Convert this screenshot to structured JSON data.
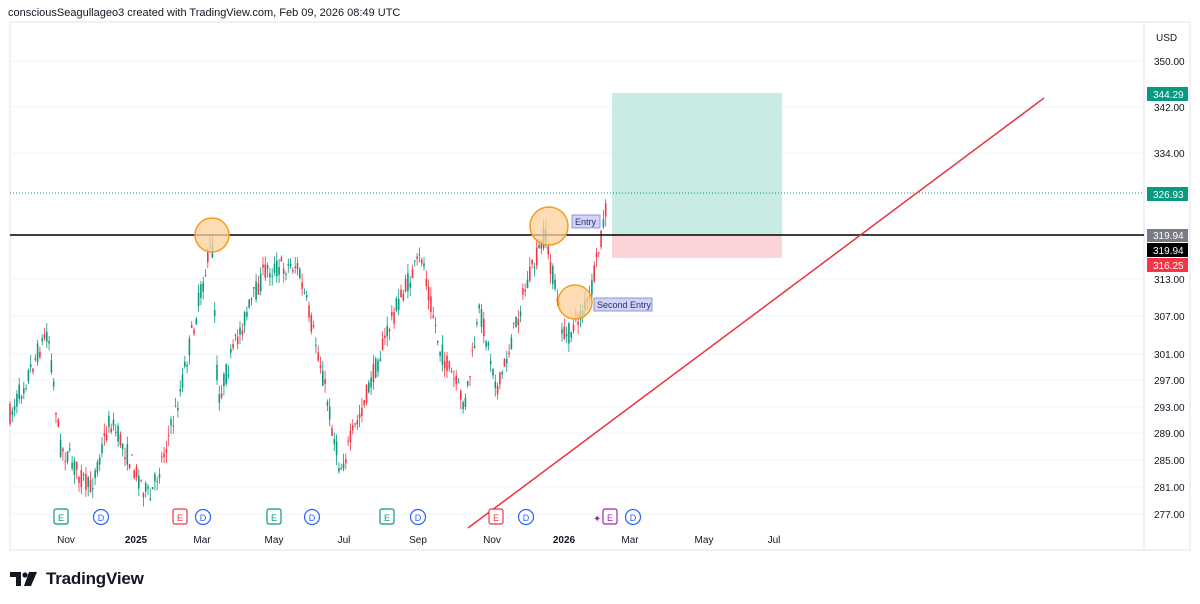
{
  "header": {
    "attribution": "consciousSeagullageo3 created with TradingView.com, Feb 09, 2026 08:49 UTC"
  },
  "price_axis": {
    "currency": "USD",
    "ticks": [
      "350.00",
      "342.00",
      "334.00",
      "313.00",
      "307.00",
      "301.00",
      "297.00",
      "293.00",
      "289.00",
      "285.00",
      "281.00",
      "277.00"
    ]
  },
  "time_axis": {
    "labels": [
      {
        "text": "Nov",
        "bold": false
      },
      {
        "text": "2025",
        "bold": true
      },
      {
        "text": "Mar",
        "bold": false
      },
      {
        "text": "May",
        "bold": false
      },
      {
        "text": "Jul",
        "bold": false
      },
      {
        "text": "Sep",
        "bold": false
      },
      {
        "text": "Nov",
        "bold": false
      },
      {
        "text": "2026",
        "bold": true
      },
      {
        "text": "Mar",
        "bold": false
      },
      {
        "text": "May",
        "bold": false
      },
      {
        "text": "Jul",
        "bold": false
      }
    ]
  },
  "price_badges": {
    "target": {
      "text": "344.29",
      "color": "#089981"
    },
    "last": {
      "text": "326.93",
      "color": "#089981"
    },
    "line_grey": {
      "text": "319.94",
      "color": "#787b86"
    },
    "line_black": {
      "text": "319.94",
      "color": "#000000"
    },
    "stop": {
      "text": "316.25",
      "color": "#f23645"
    }
  },
  "annotations": {
    "entry_label": "Entry",
    "second_entry_label": "Second Entry"
  },
  "events": [
    {
      "type": "E",
      "color": "#089981"
    },
    {
      "type": "D",
      "color": "#2962ff"
    },
    {
      "type": "E",
      "color": "#f23645"
    },
    {
      "type": "D",
      "color": "#2962ff"
    },
    {
      "type": "E",
      "color": "#089981"
    },
    {
      "type": "D",
      "color": "#2962ff"
    },
    {
      "type": "E",
      "color": "#089981"
    },
    {
      "type": "D",
      "color": "#2962ff"
    },
    {
      "type": "E",
      "color": "#f23645"
    },
    {
      "type": "D",
      "color": "#2962ff"
    },
    {
      "type": "E",
      "color": "#9c27b0"
    },
    {
      "type": "D",
      "color": "#2962ff"
    }
  ],
  "colors": {
    "up": "#089981",
    "down": "#f23645",
    "profit_zone": "#c8ebe3",
    "loss_zone": "#fbd3d7",
    "trendline": "#e8343e",
    "horizontal_line": "#000000",
    "circle_fill": "#ffd29b",
    "circle_stroke": "#f59b1e"
  },
  "brand": {
    "name": "TradingView"
  }
}
